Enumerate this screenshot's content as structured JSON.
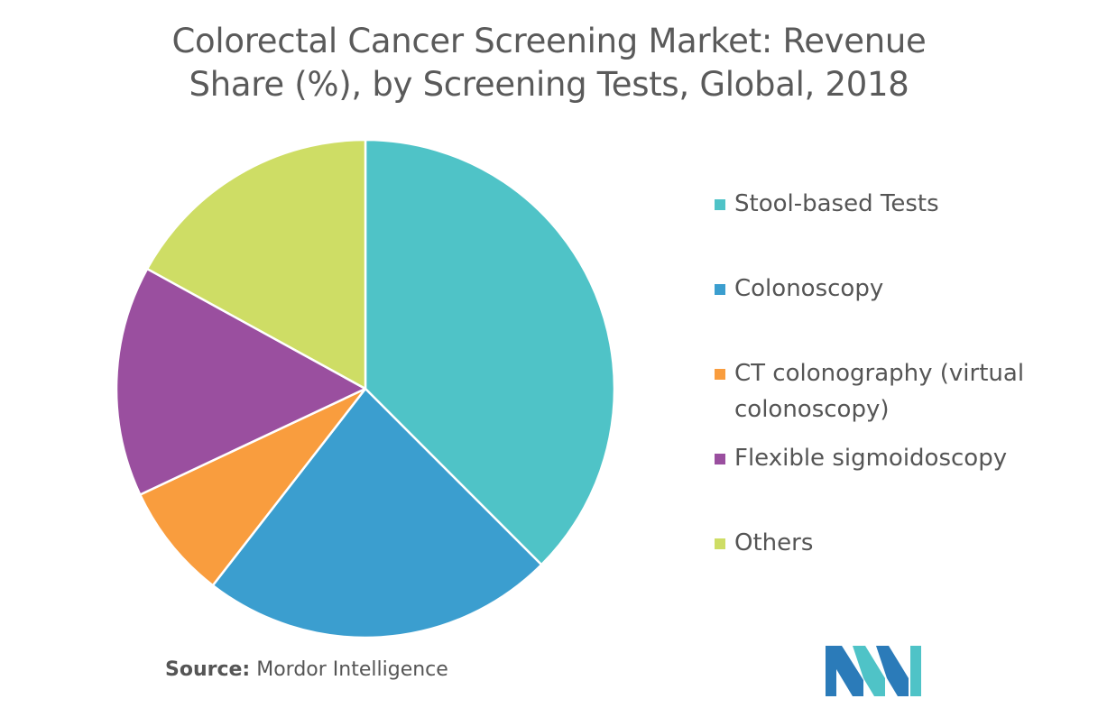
{
  "chart_title_line1": "Colorectal Cancer Screening Market: Revenue",
  "chart_title_line2": "Share (%), by Screening Tests, Global, 2018",
  "source_label": "Source:",
  "source_value": "Mordor Intelligence",
  "chart_data": {
    "type": "pie",
    "title": "Colorectal Cancer Screening Market: Revenue Share (%), by Screening Tests, Global, 2018",
    "categories": [
      "Stool-based Tests",
      "Colonoscopy",
      "CT colonography (virtual colonoscopy)",
      "Flexible sigmoidoscopy",
      "Others"
    ],
    "values": [
      37.5,
      23.0,
      7.5,
      15.0,
      17.0
    ],
    "colors": [
      "#4fc3c7",
      "#3b9ecf",
      "#f99d3e",
      "#9a4f9f",
      "#cedd65"
    ],
    "legend_position": "right",
    "start_angle": "top",
    "direction": "clockwise"
  },
  "legend": [
    {
      "label": "Stool-based Tests",
      "color": "#4fc3c7"
    },
    {
      "label": "Colonoscopy",
      "color": "#3b9ecf"
    },
    {
      "label": "CT colonography (virtual colonoscopy)",
      "color": "#f99d3e"
    },
    {
      "label": "Flexible sigmoidoscopy",
      "color": "#9a4f9f"
    },
    {
      "label": "Others",
      "color": "#cedd65"
    }
  ],
  "logo": {
    "colors": [
      "#2b7bb9",
      "#4fc3c7"
    ]
  }
}
